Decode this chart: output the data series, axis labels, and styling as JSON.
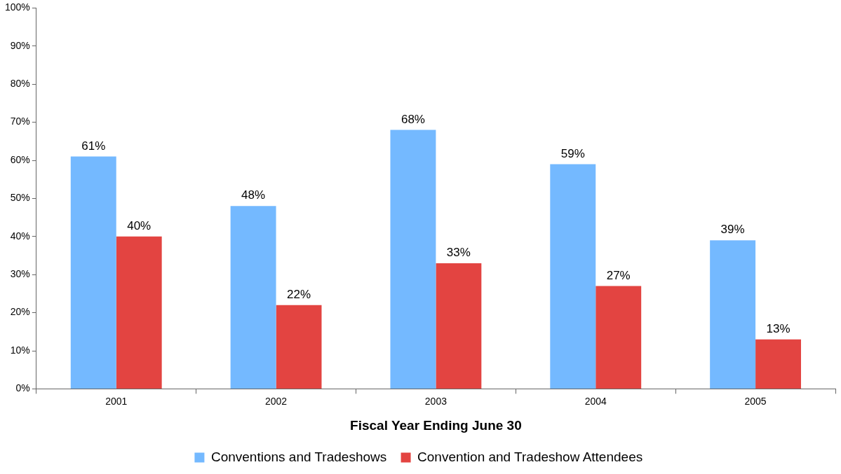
{
  "chart_data": {
    "type": "bar",
    "xlabel": "Fiscal Year Ending June 30",
    "categories": [
      "2001",
      "2002",
      "2003",
      "2004",
      "2005"
    ],
    "series": [
      {
        "name": "Conventions and Tradeshows",
        "color": "#74b9ff",
        "values": [
          61,
          48,
          68,
          59,
          39
        ],
        "value_labels": [
          "61%",
          "48%",
          "68%",
          "59%",
          "39%"
        ]
      },
      {
        "name": "Convention and Tradeshow Attendees",
        "color": "#e34441",
        "values": [
          40,
          22,
          33,
          27,
          13
        ],
        "value_labels": [
          "40%",
          "22%",
          "33%",
          "27%",
          "13%"
        ]
      }
    ],
    "ylim": [
      0,
      100
    ],
    "yticks": [
      {
        "value": 0,
        "label": "0%"
      },
      {
        "value": 10,
        "label": "10%"
      },
      {
        "value": 20,
        "label": "20%"
      },
      {
        "value": 30,
        "label": "30%"
      },
      {
        "value": 40,
        "label": "40%"
      },
      {
        "value": 50,
        "label": "50%"
      },
      {
        "value": 60,
        "label": "60%"
      },
      {
        "value": 70,
        "label": "70%"
      },
      {
        "value": 80,
        "label": "80%"
      },
      {
        "value": 90,
        "label": "90%"
      },
      {
        "value": 100,
        "label": "100%"
      }
    ],
    "grid": false,
    "legend": "bottom"
  }
}
